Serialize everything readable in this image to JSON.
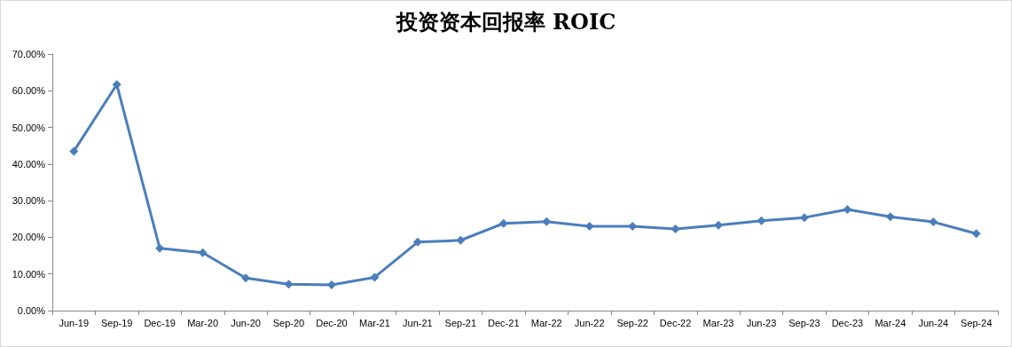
{
  "chart_data": {
    "type": "line",
    "title": "投资资本回报率 ROIC",
    "categories": [
      "Jun-19",
      "Sep-19",
      "Dec-19",
      "Mar-20",
      "Jun-20",
      "Sep-20",
      "Dec-20",
      "Mar-21",
      "Jun-21",
      "Sep-21",
      "Dec-21",
      "Mar-22",
      "Jun-22",
      "Sep-22",
      "Dec-22",
      "Mar-23",
      "Jun-23",
      "Sep-23",
      "Dec-23",
      "Mar-24",
      "Jun-24",
      "Sep-24"
    ],
    "series": [
      {
        "color": "#4a7ebb",
        "values": [
          43.5,
          61.7,
          17.0,
          15.8,
          8.9,
          7.2,
          7.0,
          9.1,
          18.7,
          19.2,
          23.8,
          24.3,
          23.0,
          23.0,
          22.3,
          23.3,
          24.5,
          25.4,
          27.6,
          25.6,
          24.2,
          21.0
        ]
      }
    ],
    "ylim": [
      0,
      70
    ],
    "yticks": [
      {
        "value": 0,
        "label": "0.00%"
      },
      {
        "value": 10,
        "label": "10.00%"
      },
      {
        "value": 20,
        "label": "20.00%"
      },
      {
        "value": 30,
        "label": "30.00%"
      },
      {
        "value": 40,
        "label": "40.00%"
      },
      {
        "value": 50,
        "label": "50.00%"
      },
      {
        "value": 60,
        "label": "60.00%"
      },
      {
        "value": 70,
        "label": "70.00%"
      }
    ],
    "grid": false,
    "marker": "diamond",
    "line_style": "solid"
  }
}
